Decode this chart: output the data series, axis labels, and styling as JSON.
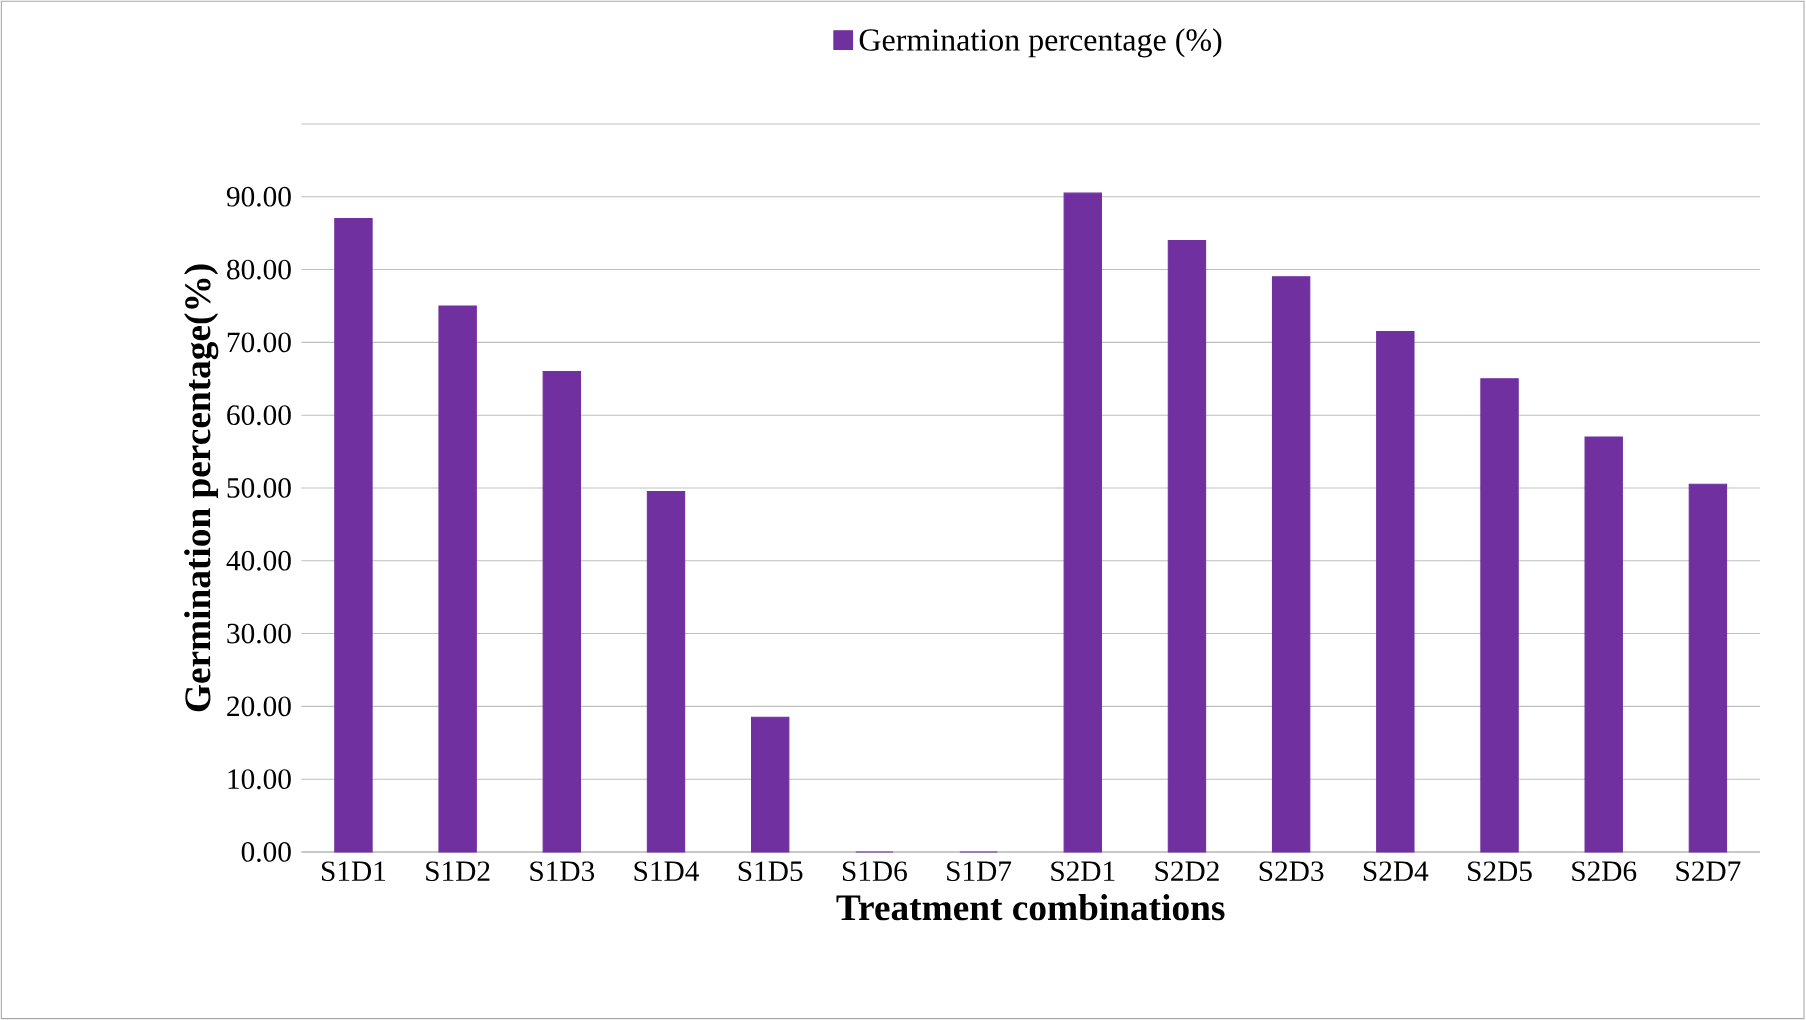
{
  "chart_data": {
    "type": "bar",
    "xlabel": "Treatment combinations",
    "ylabel": "Germination percentage(%)",
    "categories": [
      "S1D1",
      "S1D2",
      "S1D3",
      "S1D4",
      "S1D5",
      "S1D6",
      "S1D7",
      "S2D1",
      "S2D2",
      "S2D3",
      "S2D4",
      "S2D5",
      "S2D6",
      "S2D7"
    ],
    "series": [
      {
        "name": "Germination percentage (%)",
        "color": "#7030a0",
        "values": [
          87,
          75,
          66,
          49.5,
          18.5,
          0,
          0,
          90.5,
          84,
          79,
          71.5,
          65,
          57,
          50.5
        ]
      }
    ],
    "ylim": [
      0,
      100
    ],
    "yticks": [
      {
        "value": 0,
        "label": "0.00"
      },
      {
        "value": 10,
        "label": "10.00"
      },
      {
        "value": 20,
        "label": "20.00"
      },
      {
        "value": 30,
        "label": "30.00"
      },
      {
        "value": 40,
        "label": "40.00"
      },
      {
        "value": 50,
        "label": "50.00"
      },
      {
        "value": 60,
        "label": "60.00"
      },
      {
        "value": 70,
        "label": "70.00"
      },
      {
        "value": 80,
        "label": "80.00"
      },
      {
        "value": 90,
        "label": "90.00"
      },
      {
        "value": 100,
        "label": null
      }
    ],
    "grid": "y",
    "legend": "top"
  }
}
